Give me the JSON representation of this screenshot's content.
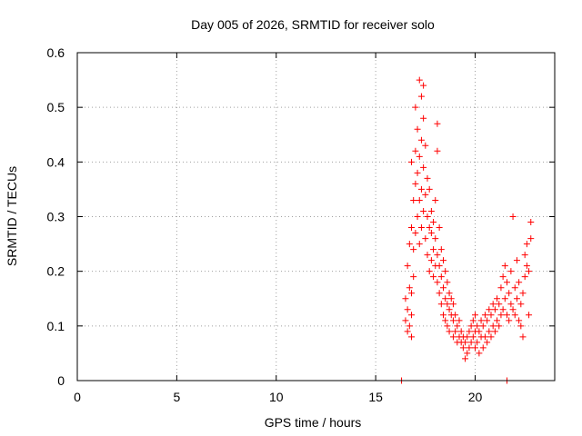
{
  "chart_data": {
    "type": "scatter",
    "title": "Day 005 of 2026, SRMTID for receiver solo",
    "xlabel": "GPS time / hours",
    "ylabel": "SRMTID / TECUs",
    "xlim": [
      0,
      24
    ],
    "ylim": [
      0,
      0.6
    ],
    "xticks": [
      0,
      5,
      10,
      15,
      20
    ],
    "yticks": [
      0,
      0.1,
      0.2,
      0.3,
      0.4,
      0.5,
      0.6
    ],
    "grid": true,
    "marker": "+",
    "color": "#ff0000",
    "series": [
      {
        "name": "SRMTID",
        "points": [
          [
            16.3,
            0.0
          ],
          [
            21.6,
            0.0
          ],
          [
            16.5,
            0.11
          ],
          [
            16.5,
            0.15
          ],
          [
            16.6,
            0.09
          ],
          [
            16.6,
            0.13
          ],
          [
            16.6,
            0.21
          ],
          [
            16.7,
            0.1
          ],
          [
            16.7,
            0.17
          ],
          [
            16.7,
            0.25
          ],
          [
            16.8,
            0.08
          ],
          [
            16.8,
            0.12
          ],
          [
            16.8,
            0.16
          ],
          [
            16.8,
            0.28
          ],
          [
            16.8,
            0.4
          ],
          [
            16.9,
            0.19
          ],
          [
            16.9,
            0.24
          ],
          [
            16.9,
            0.33
          ],
          [
            17.0,
            0.27
          ],
          [
            17.0,
            0.36
          ],
          [
            17.0,
            0.42
          ],
          [
            17.0,
            0.5
          ],
          [
            17.1,
            0.3
          ],
          [
            17.1,
            0.38
          ],
          [
            17.1,
            0.46
          ],
          [
            17.2,
            0.25
          ],
          [
            17.2,
            0.33
          ],
          [
            17.2,
            0.41
          ],
          [
            17.2,
            0.55
          ],
          [
            17.3,
            0.28
          ],
          [
            17.3,
            0.35
          ],
          [
            17.3,
            0.44
          ],
          [
            17.3,
            0.52
          ],
          [
            17.4,
            0.31
          ],
          [
            17.4,
            0.39
          ],
          [
            17.4,
            0.48
          ],
          [
            17.4,
            0.54
          ],
          [
            17.5,
            0.26
          ],
          [
            17.5,
            0.34
          ],
          [
            17.5,
            0.43
          ],
          [
            17.6,
            0.23
          ],
          [
            17.6,
            0.3
          ],
          [
            17.6,
            0.37
          ],
          [
            17.7,
            0.2
          ],
          [
            17.7,
            0.28
          ],
          [
            17.7,
            0.35
          ],
          [
            17.8,
            0.22
          ],
          [
            17.8,
            0.27
          ],
          [
            17.8,
            0.31
          ],
          [
            17.9,
            0.19
          ],
          [
            17.9,
            0.24
          ],
          [
            17.9,
            0.29
          ],
          [
            18.0,
            0.21
          ],
          [
            18.0,
            0.26
          ],
          [
            18.0,
            0.33
          ],
          [
            18.1,
            0.18
          ],
          [
            18.1,
            0.23
          ],
          [
            18.1,
            0.42
          ],
          [
            18.1,
            0.47
          ],
          [
            18.2,
            0.16
          ],
          [
            18.2,
            0.21
          ],
          [
            18.2,
            0.28
          ],
          [
            18.3,
            0.14
          ],
          [
            18.3,
            0.19
          ],
          [
            18.3,
            0.24
          ],
          [
            18.4,
            0.12
          ],
          [
            18.4,
            0.17
          ],
          [
            18.4,
            0.22
          ],
          [
            18.5,
            0.11
          ],
          [
            18.5,
            0.15
          ],
          [
            18.5,
            0.2
          ],
          [
            18.6,
            0.1
          ],
          [
            18.6,
            0.14
          ],
          [
            18.6,
            0.18
          ],
          [
            18.7,
            0.09
          ],
          [
            18.7,
            0.13
          ],
          [
            18.7,
            0.16
          ],
          [
            18.8,
            0.12
          ],
          [
            18.8,
            0.15
          ],
          [
            18.9,
            0.08
          ],
          [
            18.9,
            0.11
          ],
          [
            18.9,
            0.14
          ],
          [
            19.0,
            0.09
          ],
          [
            19.0,
            0.12
          ],
          [
            19.1,
            0.07
          ],
          [
            19.1,
            0.1
          ],
          [
            19.2,
            0.08
          ],
          [
            19.2,
            0.11
          ],
          [
            19.3,
            0.07
          ],
          [
            19.3,
            0.09
          ],
          [
            19.4,
            0.06
          ],
          [
            19.4,
            0.08
          ],
          [
            19.5,
            0.04
          ],
          [
            19.5,
            0.07
          ],
          [
            19.6,
            0.05
          ],
          [
            19.6,
            0.08
          ],
          [
            19.7,
            0.06
          ],
          [
            19.7,
            0.09
          ],
          [
            19.8,
            0.07
          ],
          [
            19.8,
            0.1
          ],
          [
            19.9,
            0.08
          ],
          [
            19.9,
            0.11
          ],
          [
            20.0,
            0.06
          ],
          [
            20.0,
            0.09
          ],
          [
            20.0,
            0.12
          ],
          [
            20.1,
            0.07
          ],
          [
            20.1,
            0.1
          ],
          [
            20.2,
            0.05
          ],
          [
            20.2,
            0.09
          ],
          [
            20.3,
            0.08
          ],
          [
            20.3,
            0.11
          ],
          [
            20.4,
            0.06
          ],
          [
            20.4,
            0.1
          ],
          [
            20.5,
            0.08
          ],
          [
            20.5,
            0.12
          ],
          [
            20.6,
            0.07
          ],
          [
            20.6,
            0.11
          ],
          [
            20.7,
            0.09
          ],
          [
            20.7,
            0.13
          ],
          [
            20.8,
            0.08
          ],
          [
            20.8,
            0.12
          ],
          [
            20.9,
            0.1
          ],
          [
            20.9,
            0.14
          ],
          [
            21.0,
            0.09
          ],
          [
            21.0,
            0.13
          ],
          [
            21.1,
            0.11
          ],
          [
            21.1,
            0.15
          ],
          [
            21.2,
            0.1
          ],
          [
            21.2,
            0.14
          ],
          [
            21.3,
            0.12
          ],
          [
            21.3,
            0.17
          ],
          [
            21.4,
            0.13
          ],
          [
            21.4,
            0.19
          ],
          [
            21.5,
            0.15
          ],
          [
            21.5,
            0.21
          ],
          [
            21.6,
            0.12
          ],
          [
            21.6,
            0.18
          ],
          [
            21.7,
            0.11
          ],
          [
            21.7,
            0.16
          ],
          [
            21.8,
            0.14
          ],
          [
            21.8,
            0.2
          ],
          [
            21.9,
            0.13
          ],
          [
            21.9,
            0.3
          ],
          [
            22.0,
            0.12
          ],
          [
            22.0,
            0.17
          ],
          [
            22.1,
            0.15
          ],
          [
            22.1,
            0.22
          ],
          [
            22.2,
            0.11
          ],
          [
            22.2,
            0.18
          ],
          [
            22.3,
            0.1
          ],
          [
            22.3,
            0.14
          ],
          [
            22.4,
            0.08
          ],
          [
            22.4,
            0.16
          ],
          [
            22.5,
            0.19
          ],
          [
            22.5,
            0.23
          ],
          [
            22.6,
            0.21
          ],
          [
            22.6,
            0.25
          ],
          [
            22.7,
            0.12
          ],
          [
            22.7,
            0.2
          ],
          [
            22.8,
            0.29
          ],
          [
            22.8,
            0.26
          ]
        ]
      }
    ]
  }
}
